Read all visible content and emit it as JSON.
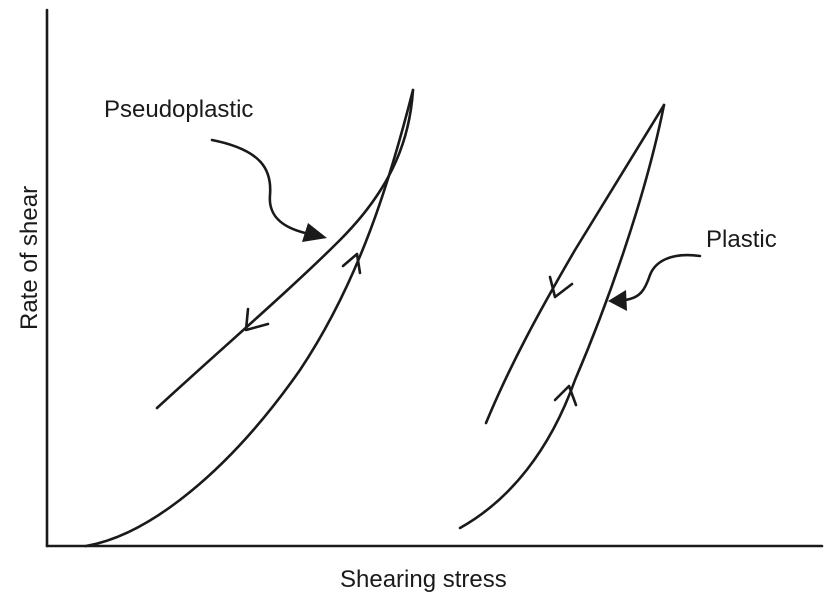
{
  "diagram": {
    "x_axis_label": "Shearing stress",
    "y_axis_label": "Rate of shear",
    "curves": [
      {
        "label": "Pseudoplastic"
      },
      {
        "label": "Plastic"
      }
    ],
    "ink_color": "#1a1a1a",
    "background_color": "#ffffff"
  }
}
